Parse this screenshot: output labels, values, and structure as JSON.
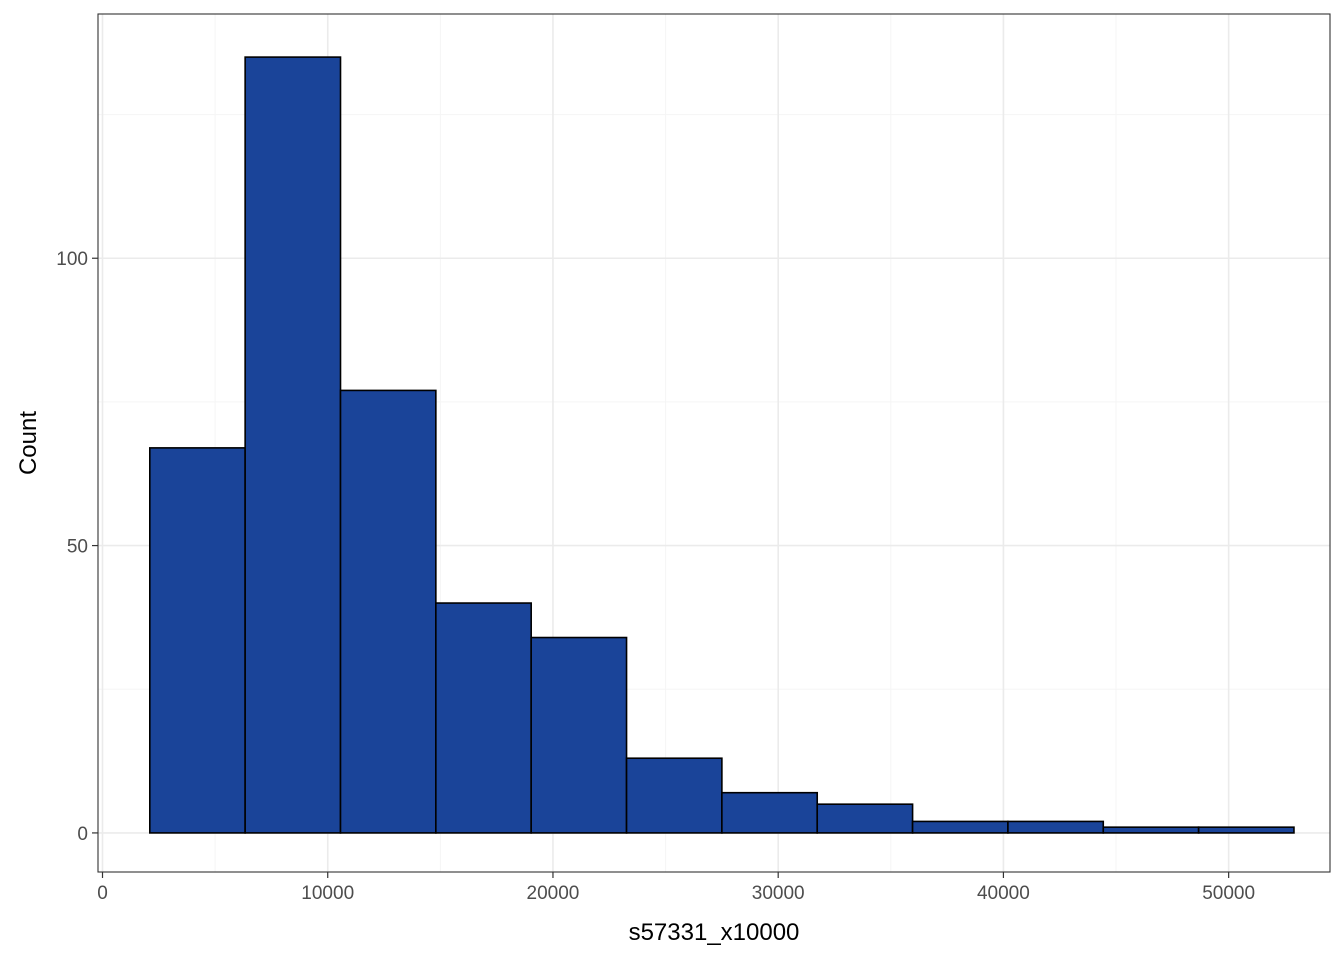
{
  "chart_data": {
    "type": "bar",
    "title": "",
    "xlabel": "s57331_x10000",
    "ylabel": "Count",
    "xlim": [
      -200,
      54500
    ],
    "ylim": [
      -6.8,
      142.5
    ],
    "x_ticks": [
      0,
      10000,
      20000,
      30000,
      40000,
      50000
    ],
    "x_minor_ticks": [
      5000,
      15000,
      25000,
      35000,
      45000
    ],
    "y_ticks": [
      0,
      50,
      100
    ],
    "y_minor_ticks": [
      25,
      75,
      125
    ],
    "grid": true,
    "legend": "none",
    "bins": [
      {
        "x0": 2100,
        "x1": 6333,
        "count": 67
      },
      {
        "x0": 6333,
        "x1": 10567,
        "count": 135
      },
      {
        "x0": 10567,
        "x1": 14800,
        "count": 77
      },
      {
        "x0": 14800,
        "x1": 19033,
        "count": 40
      },
      {
        "x0": 19033,
        "x1": 23267,
        "count": 34
      },
      {
        "x0": 23267,
        "x1": 27500,
        "count": 13
      },
      {
        "x0": 27500,
        "x1": 31733,
        "count": 7
      },
      {
        "x0": 31733,
        "x1": 35967,
        "count": 5
      },
      {
        "x0": 35967,
        "x1": 40200,
        "count": 2
      },
      {
        "x0": 40200,
        "x1": 44433,
        "count": 2
      },
      {
        "x0": 44433,
        "x1": 48667,
        "count": 1
      },
      {
        "x0": 48667,
        "x1": 52900,
        "count": 1
      }
    ],
    "colors": {
      "bar_fill": "#1A4499",
      "bar_stroke": "#000000",
      "grid_major": "#EBEBEB",
      "grid_minor": "#F5F5F5",
      "panel_border": "#333333",
      "tick_text": "#4D4D4D",
      "title_text": "#000000"
    }
  }
}
